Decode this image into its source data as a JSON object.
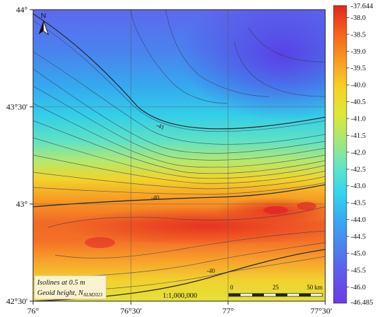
{
  "map": {
    "x_ticks": [
      "76°",
      "76°30'",
      "77°",
      "77°30'"
    ],
    "y_ticks": [
      "44°",
      "43°30'",
      "43°",
      "42°30'"
    ],
    "north_label": "N",
    "scale_ratio": "1:1,000,000",
    "scale_bar": {
      "labels": [
        "0",
        "25",
        "50 km"
      ]
    },
    "legend": {
      "line1": "Isolines at 0.5 m",
      "line2_prefix": "Geoid height, N",
      "line2_sub": "ALM2023"
    },
    "isoline_labels": [
      "-41",
      "-40",
      "-40"
    ],
    "colorbar": {
      "max_label": "-37.644",
      "min_label": "-46.485",
      "ticks": [
        "-38.0",
        "-38.5",
        "-39.0",
        "-39.5",
        "-40.0",
        "-40.5",
        "-41.0",
        "-41.5",
        "-42.0",
        "-42.5",
        "-43.0",
        "-43.5",
        "-44.0",
        "-44.5",
        "-45.0",
        "-45.5",
        "-46.0"
      ],
      "colors": [
        "#e3261f",
        "#f3611c",
        "#f79a21",
        "#f7d125",
        "#dde836",
        "#a8e67a",
        "#5ee6c8",
        "#35d2ee",
        "#3aa6f0",
        "#4f7eee",
        "#6256ea",
        "#6b3de6"
      ]
    }
  }
}
